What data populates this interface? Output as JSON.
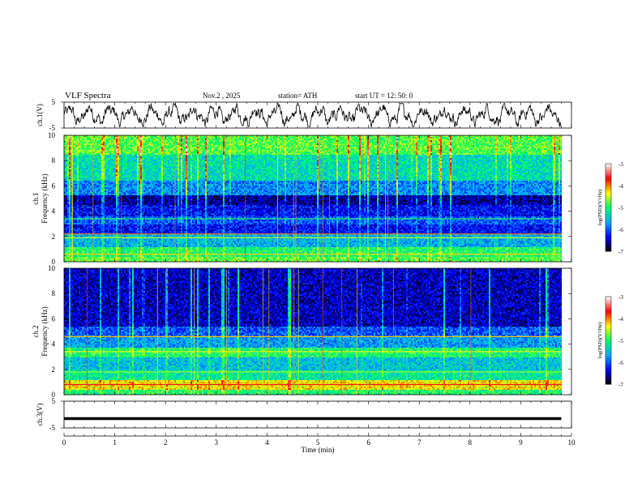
{
  "header": {
    "title": "VLF  Spectra",
    "date": "Nov.2  , 2025",
    "station": "station= ATH",
    "start": "start  UT  =    12: 50: 0"
  },
  "chart_data": [
    {
      "type": "line",
      "name": "ch1-waveform",
      "ylabel": "ch.1(V)",
      "ylim": [
        -5,
        5
      ],
      "yticks": [
        "5",
        "-5"
      ],
      "xlim": [
        0,
        10
      ],
      "series": [
        {
          "name": "ch.1",
          "description": "noisy waveform oscillating roughly between -3 V and +3 V",
          "amplitude": 3,
          "offset": 0
        }
      ]
    },
    {
      "type": "heatmap",
      "name": "ch1-spectrogram",
      "ylabel": "ch.1\nFrequency  (kHz)",
      "ylabel_lines": [
        "ch.1",
        "Frequency  (kHz)"
      ],
      "ylim": [
        0,
        10
      ],
      "yticks": [
        "0",
        "2",
        "4",
        "6",
        "8",
        "10"
      ],
      "xlim": [
        0,
        9.8
      ],
      "bands_khz": [
        {
          "from": 8.5,
          "to": 10,
          "log_psd": -4.8
        },
        {
          "from": 6.5,
          "to": 8.5,
          "log_psd": -5.3
        },
        {
          "from": 5.3,
          "to": 6.5,
          "log_psd": -5.8
        },
        {
          "from": 4.6,
          "to": 5.3,
          "log_psd": -6.6
        },
        {
          "from": 3.7,
          "to": 4.6,
          "log_psd": -6.3
        },
        {
          "from": 3.0,
          "to": 3.7,
          "log_psd": -6.0
        },
        {
          "from": 2.2,
          "to": 3.0,
          "log_psd": -6.3
        },
        {
          "from": 1.2,
          "to": 2.2,
          "log_psd": -5.6
        },
        {
          "from": 0.5,
          "to": 1.2,
          "log_psd": -5.0
        },
        {
          "from": 0.0,
          "to": 0.5,
          "log_psd": -4.8
        }
      ],
      "lines_khz": [
        {
          "f": 2.2,
          "log_psd": -4.0
        },
        {
          "f": 1.9,
          "log_psd": -4.5
        },
        {
          "f": 0.6,
          "log_psd": -4.2
        },
        {
          "f": 3.4,
          "log_psd": -4.9
        }
      ]
    },
    {
      "type": "heatmap",
      "name": "ch2-spectrogram",
      "ylabel": "ch.2\nFrequency  (kHz)",
      "ylabel_lines": [
        "ch.2",
        "Frequency  (kHz)"
      ],
      "ylim": [
        0,
        10
      ],
      "yticks": [
        "0",
        "2",
        "4",
        "6",
        "8",
        "10"
      ],
      "xlim": [
        0,
        9.8
      ],
      "bands_khz": [
        {
          "from": 5.5,
          "to": 10,
          "log_psd": -6.5
        },
        {
          "from": 4.7,
          "to": 5.5,
          "log_psd": -6.0
        },
        {
          "from": 3.8,
          "to": 4.7,
          "log_psd": -5.7
        },
        {
          "from": 3.0,
          "to": 3.8,
          "log_psd": -5.0
        },
        {
          "from": 2.0,
          "to": 3.0,
          "log_psd": -5.5
        },
        {
          "from": 1.2,
          "to": 2.0,
          "log_psd": -5.2
        },
        {
          "from": 0.5,
          "to": 1.2,
          "log_psd": -4.3
        },
        {
          "from": 0.0,
          "to": 0.5,
          "log_psd": -5.0
        }
      ],
      "lines_khz": [
        {
          "f": 0.8,
          "log_psd": -3.6
        },
        {
          "f": 4.6,
          "log_psd": -4.2
        },
        {
          "f": 3.4,
          "log_psd": -4.3
        },
        {
          "f": 1.8,
          "log_psd": -4.6
        }
      ]
    },
    {
      "type": "line",
      "name": "ch3-waveform",
      "ylabel": "ch.3(V)",
      "ylim": [
        -5,
        5
      ],
      "yticks": [
        "5",
        "-5"
      ],
      "xlim": [
        0,
        10
      ],
      "xlabel": "Time  (min)",
      "xticks": [
        "0",
        "1",
        "2",
        "3",
        "4",
        "5",
        "6",
        "7",
        "8",
        "9",
        "10"
      ],
      "series": [
        {
          "name": "ch.3",
          "description": "flat thick line near -1.5 V",
          "level": -1.5
        }
      ]
    }
  ],
  "colorbar": {
    "label": "log(PSD)(V²/Hz)",
    "range": [
      -7,
      -3
    ],
    "ticks": [
      "-3",
      "-4",
      "-5",
      "-6",
      "-7"
    ],
    "colors": [
      "#000000",
      "#0000ff",
      "#00aaff",
      "#00ff66",
      "#ffff00",
      "#ff0000",
      "#ffffff"
    ]
  }
}
